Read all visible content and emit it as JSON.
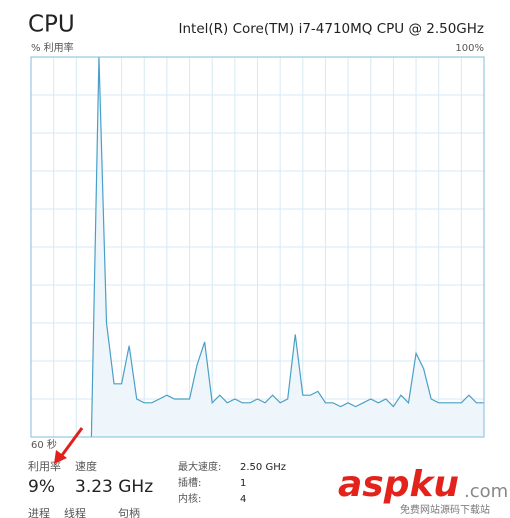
{
  "header": {
    "title": "CPU",
    "processor": "Intel(R) Core(TM) i7-4710MQ CPU @ 2.50GHz"
  },
  "chart_data": {
    "type": "area",
    "y_label": "% 利用率",
    "y_max_label": "100%",
    "x_span_label": "60 秒",
    "x": [
      0,
      1,
      2,
      3,
      4,
      5,
      6,
      7,
      8,
      9,
      10,
      11,
      12,
      13,
      14,
      15,
      16,
      17,
      18,
      19,
      20,
      21,
      22,
      23,
      24,
      25,
      26,
      27,
      28,
      29,
      30,
      31,
      32,
      33,
      34,
      35,
      36,
      37,
      38,
      39,
      40,
      41,
      42,
      43,
      44,
      45,
      46,
      47,
      48,
      49,
      50,
      51,
      52,
      53,
      54,
      55,
      56,
      57,
      58,
      59,
      60
    ],
    "series": [
      {
        "color": "#4a9fc8",
        "values": [
          null,
          null,
          null,
          null,
          null,
          null,
          null,
          null,
          0,
          100,
          30,
          14,
          14,
          24,
          10,
          9,
          9,
          10,
          11,
          10,
          10,
          10,
          19,
          25,
          9,
          11,
          9,
          10,
          9,
          9,
          10,
          9,
          11,
          9,
          10,
          27,
          11,
          11,
          12,
          9,
          9,
          8,
          9,
          8,
          9,
          10,
          9,
          10,
          8,
          11,
          9,
          22,
          18,
          10,
          9,
          9,
          9,
          9,
          11,
          9,
          9
        ]
      }
    ],
    "xlim": [
      0,
      60
    ],
    "ylim": [
      0,
      100
    ],
    "grid_rows": 10,
    "grid_columns": 20
  },
  "stats": {
    "utilization": {
      "label": "利用率",
      "value": "9%"
    },
    "speed": {
      "label": "速度",
      "value": "3.23 GHz"
    },
    "details": [
      {
        "label": "最大速度:",
        "value": "2.50 GHz"
      },
      {
        "label": "插槽:",
        "value": "1"
      },
      {
        "label": "内核:",
        "value": "4"
      }
    ],
    "cut_labels": [
      "进程",
      "线程",
      "句柄"
    ]
  },
  "watermark": {
    "brand": "aspku",
    "domain": ".com",
    "tagline": "免费网站源码下载站"
  }
}
